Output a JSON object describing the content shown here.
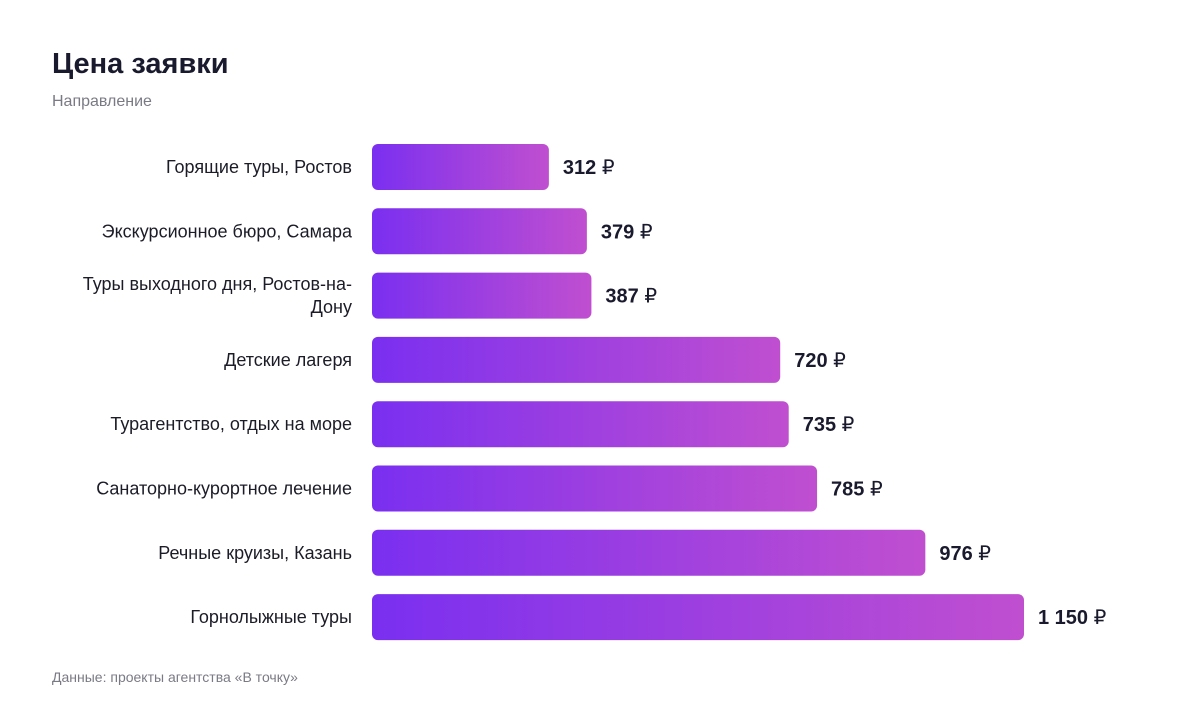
{
  "header": {
    "title": "Цена заявки",
    "subtitle": "Направление"
  },
  "footer": {
    "source": "Данные: проекты агентства «В точку»"
  },
  "colors": {
    "bar_start": "#7a2ff0",
    "bar_end": "#c04fd0",
    "text": "#1c1c28",
    "muted": "#7a7a85"
  },
  "chart_data": {
    "type": "bar",
    "orientation": "horizontal",
    "title": "Цена заявки",
    "subtitle": "Направление",
    "unit": "₽",
    "categories": [
      [
        "Горящие туры, Ростов"
      ],
      [
        "Экскурсионное бюро, Самара"
      ],
      [
        "Туры выходного дня, Ростов-на-",
        "Дону"
      ],
      [
        "Детские лагеря"
      ],
      [
        "Турагентство, отдых на море"
      ],
      [
        "Санаторно-курортное лечение"
      ],
      [
        "Речные круизы, Казань"
      ],
      [
        "Горнолыжные туры"
      ]
    ],
    "values": [
      312,
      379,
      387,
      720,
      735,
      785,
      976,
      1150
    ],
    "value_labels": [
      "312",
      "379",
      "387",
      "720",
      "735",
      "785",
      "976",
      "1 150"
    ],
    "xlim": [
      0,
      1150
    ],
    "grid": false,
    "legend": "none"
  }
}
